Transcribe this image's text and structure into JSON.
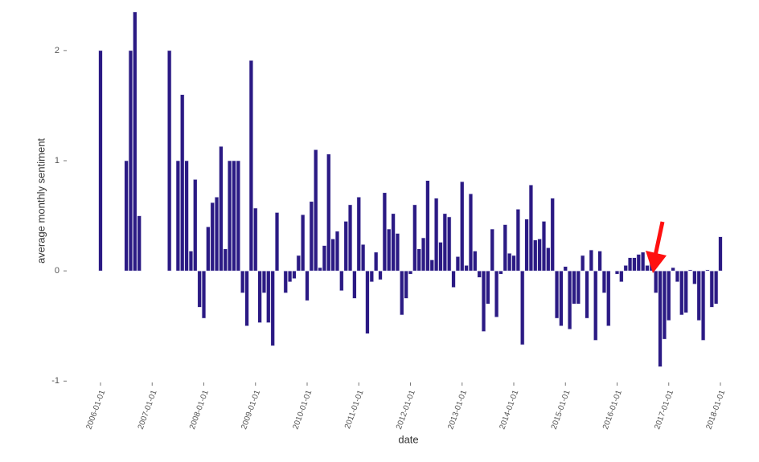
{
  "chart_data": {
    "type": "bar",
    "x_label": "date",
    "y_label": "average monthly sentiment",
    "color": "#2b1a84",
    "x": [
      "2006-01-01",
      "2006-02-01",
      "2006-03-01",
      "2006-04-01",
      "2006-05-01",
      "2006-06-01",
      "2006-07-01",
      "2006-08-01",
      "2006-09-01",
      "2006-10-01",
      "2006-11-01",
      "2006-12-01",
      "2007-01-01",
      "2007-02-01",
      "2007-03-01",
      "2007-04-01",
      "2007-05-01",
      "2007-06-01",
      "2007-07-01",
      "2007-08-01",
      "2007-09-01",
      "2007-10-01",
      "2007-11-01",
      "2007-12-01",
      "2008-01-01",
      "2008-02-01",
      "2008-03-01",
      "2008-04-01",
      "2008-05-01",
      "2008-06-01",
      "2008-07-01",
      "2008-08-01",
      "2008-09-01",
      "2008-10-01",
      "2008-11-01",
      "2008-12-01",
      "2009-01-01",
      "2009-02-01",
      "2009-03-01",
      "2009-04-01",
      "2009-05-01",
      "2009-06-01",
      "2009-07-01",
      "2009-08-01",
      "2009-09-01",
      "2009-10-01",
      "2009-11-01",
      "2009-12-01",
      "2010-01-01",
      "2010-02-01",
      "2010-03-01",
      "2010-04-01",
      "2010-05-01",
      "2010-06-01",
      "2010-07-01",
      "2010-08-01",
      "2010-09-01",
      "2010-10-01",
      "2010-11-01",
      "2010-12-01",
      "2011-01-01",
      "2011-02-01",
      "2011-03-01",
      "2011-04-01",
      "2011-05-01",
      "2011-06-01",
      "2011-07-01",
      "2011-08-01",
      "2011-09-01",
      "2011-10-01",
      "2011-11-01",
      "2011-12-01",
      "2012-01-01",
      "2012-02-01",
      "2012-03-01",
      "2012-04-01",
      "2012-05-01",
      "2012-06-01",
      "2012-07-01",
      "2012-08-01",
      "2012-09-01",
      "2012-10-01",
      "2012-11-01",
      "2012-12-01",
      "2013-01-01",
      "2013-02-01",
      "2013-03-01",
      "2013-04-01",
      "2013-05-01",
      "2013-06-01",
      "2013-07-01",
      "2013-08-01",
      "2013-09-01",
      "2013-10-01",
      "2013-11-01",
      "2013-12-01",
      "2014-01-01",
      "2014-02-01",
      "2014-03-01",
      "2014-04-01",
      "2014-05-01",
      "2014-06-01",
      "2014-07-01",
      "2014-08-01",
      "2014-09-01",
      "2014-10-01",
      "2014-11-01",
      "2014-12-01",
      "2015-01-01",
      "2015-02-01",
      "2015-03-01",
      "2015-04-01",
      "2015-05-01",
      "2015-06-01",
      "2015-07-01",
      "2015-08-01",
      "2015-09-01",
      "2015-10-01",
      "2015-11-01",
      "2015-12-01",
      "2016-01-01",
      "2016-02-01",
      "2016-03-01",
      "2016-04-01",
      "2016-05-01",
      "2016-06-01",
      "2016-07-01",
      "2016-08-01",
      "2016-09-01",
      "2016-10-01",
      "2016-11-01",
      "2016-12-01",
      "2017-01-01",
      "2017-02-01",
      "2017-03-01",
      "2017-04-01",
      "2017-05-01",
      "2017-06-01",
      "2017-07-01",
      "2017-08-01",
      "2017-09-01",
      "2017-10-01",
      "2017-11-01",
      "2017-12-01",
      "2018-01-01"
    ],
    "values": [
      2,
      null,
      null,
      null,
      null,
      null,
      1,
      2,
      2.35,
      0.5,
      null,
      null,
      null,
      null,
      null,
      null,
      2,
      null,
      1,
      1.6,
      1,
      0.18,
      0.83,
      -0.33,
      -0.43,
      0.4,
      0.62,
      0.67,
      1.13,
      0.2,
      1,
      1,
      1,
      -0.2,
      -0.5,
      1.91,
      0.57,
      -0.47,
      -0.2,
      -0.47,
      -0.68,
      0.53,
      null,
      -0.2,
      -0.1,
      -0.07,
      0.14,
      0.51,
      -0.27,
      0.63,
      1.1,
      0.03,
      0.23,
      1.06,
      0.29,
      0.36,
      -0.18,
      0.45,
      0.6,
      -0.25,
      0.67,
      0.24,
      -0.57,
      -0.1,
      0.17,
      -0.08,
      0.71,
      0.38,
      0.52,
      0.34,
      -0.4,
      -0.25,
      -0.03,
      0.6,
      0.2,
      0.3,
      0.82,
      0.1,
      0.66,
      0.26,
      0.52,
      0.49,
      -0.15,
      0.13,
      0.81,
      0.05,
      0.7,
      0.18,
      -0.06,
      -0.55,
      -0.3,
      0.38,
      -0.42,
      -0.03,
      0.42,
      0.16,
      0.14,
      0.56,
      -0.67,
      0.47,
      0.78,
      0.28,
      0.29,
      0.45,
      0.21,
      0.66,
      -0.43,
      -0.5,
      0.04,
      -0.53,
      -0.3,
      -0.3,
      0.14,
      -0.43,
      0.19,
      -0.63,
      0.18,
      -0.2,
      -0.5,
      null,
      -0.03,
      -0.1,
      0.05,
      0.12,
      0.12,
      0.15,
      0.17,
      0.05,
      0.08,
      -0.2,
      -0.87,
      -0.62,
      -0.45,
      0.03,
      -0.1,
      -0.4,
      -0.38,
      0.01,
      -0.12,
      -0.45,
      -0.63,
      0.01,
      -0.33,
      -0.3,
      0.31
    ],
    "xticks": [
      "2006-01-01",
      "2007-01-01",
      "2008-01-01",
      "2009-01-01",
      "2010-01-01",
      "2011-01-01",
      "2012-01-01",
      "2013-01-01",
      "2014-01-01",
      "2015-01-01",
      "2016-01-01",
      "2017-01-01",
      "2018-01-01"
    ],
    "ylim": [
      -1.1,
      2.4
    ],
    "yticks": [
      -1,
      0,
      1,
      2
    ]
  }
}
